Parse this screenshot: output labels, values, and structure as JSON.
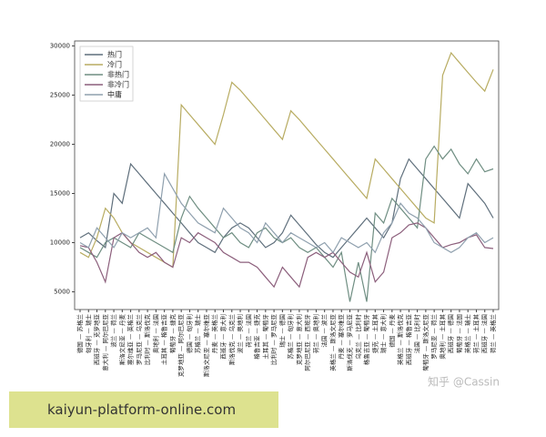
{
  "chart_data": {
    "type": "line",
    "categories": [
      "德国 — 苏格兰",
      "匈牙利 — 瑞士",
      "西班牙 — 克罗地亚",
      "意大利 — 阿尔巴尼亚",
      "波兰 — 荷兰",
      "斯洛文尼亚 — 丹麦",
      "塞尔维亚 — 英格兰",
      "罗马尼亚 — 乌克兰",
      "比利时 — 斯洛伐克",
      "奥地利 — 法国",
      "土耳其 — 格鲁吉亚",
      "葡萄牙 — 捷克",
      "克罗地亚 — 阿尔巴尼亚",
      "德国 — 匈牙利",
      "苏格兰 — 瑞士",
      "斯洛文尼亚 — 塞尔维亚",
      "丹麦 — 英格兰",
      "西班牙 — 意大利",
      "斯洛伐克 — 乌克兰",
      "波兰 — 奥地利",
      "荷兰 — 法国",
      "格鲁吉亚 — 捷克",
      "土耳其 — 葡萄牙",
      "比利时 — 罗马尼亚",
      "瑞士 — 德国",
      "苏格兰 — 匈牙利",
      "克罗地亚 — 意大利",
      "阿尔巴尼亚 — 西班牙",
      "荷兰 — 奥地利",
      "法国 — 波兰",
      "英格兰 — 斯洛文尼亚",
      "丹麦 — 塞尔维亚",
      "斯洛伐克 — 罗马尼亚",
      "乌克兰 — 比利时",
      "格鲁吉亚 — 葡萄牙",
      "捷克 — 土耳其",
      "瑞士 — 意大利",
      "德国 — 丹麦",
      "英格兰 — 斯洛伐克",
      "西班牙 — 格鲁吉亚",
      "法国 — 比利时",
      "葡萄牙 — 斯洛文尼亚",
      "罗马尼亚 — 荷兰",
      "奥地利 — 土耳其",
      "西班牙 — 德国",
      "葡萄牙 — 法国",
      "英格兰 — 瑞士",
      "荷兰 — 土耳其",
      "西班牙 — 法国",
      "荷兰 — 英格兰"
    ],
    "series": [
      {
        "name": "热门",
        "color": "#5f6f7c",
        "values": [
          10500,
          11000,
          10200,
          9500,
          15000,
          14000,
          18000,
          17000,
          16000,
          15000,
          14000,
          13000,
          12000,
          11000,
          10000,
          9500,
          9000,
          10500,
          11500,
          12000,
          11500,
          10500,
          9500,
          10000,
          11000,
          12800,
          11800,
          10800,
          9800,
          9000,
          8500,
          9500,
          10500,
          11500,
          12500,
          11500,
          10500,
          12000,
          16500,
          18500,
          17500,
          16500,
          15500,
          14500,
          13500,
          12500,
          16000,
          15000,
          14000,
          12500
        ]
      },
      {
        "name": "冷门",
        "color": "#b8ac62",
        "values": [
          9000,
          8500,
          10500,
          13500,
          12500,
          11000,
          10000,
          9500,
          9000,
          8500,
          8000,
          7500,
          24000,
          23000,
          22000,
          21000,
          20000,
          23000,
          26300,
          25500,
          24500,
          23500,
          22500,
          21500,
          20500,
          23400,
          22500,
          21500,
          20500,
          19500,
          18500,
          17500,
          16500,
          15500,
          14500,
          18500,
          17500,
          16500,
          15500,
          14500,
          13500,
          12500,
          12000,
          27000,
          29300,
          28300,
          27300,
          26300,
          25400,
          27600
        ]
      },
      {
        "name": "非热门",
        "color": "#6f8e82",
        "values": [
          9500,
          9000,
          8500,
          10000,
          10500,
          10000,
          9500,
          11000,
          10500,
          10000,
          9500,
          9000,
          12500,
          14700,
          13500,
          12500,
          11500,
          10500,
          11000,
          10000,
          9500,
          11000,
          11500,
          10500,
          10000,
          10500,
          9500,
          9000,
          9500,
          8500,
          7500,
          9000,
          4000,
          8000,
          4000,
          13000,
          12000,
          14500,
          13500,
          12500,
          11500,
          18500,
          19800,
          18500,
          19500,
          18000,
          17000,
          18500,
          17200,
          17500
        ]
      },
      {
        "name": "非冷门",
        "color": "#8c5f7c",
        "values": [
          9700,
          9500,
          8000,
          6000,
          10500,
          11000,
          10000,
          9000,
          8500,
          9000,
          8000,
          7500,
          10500,
          10000,
          11000,
          10500,
          10000,
          9000,
          8500,
          8000,
          8000,
          7500,
          6500,
          5500,
          7500,
          6500,
          5500,
          8500,
          9000,
          8500,
          9000,
          8000,
          7000,
          6500,
          9000,
          6000,
          7000,
          10500,
          11000,
          11800,
          12000,
          11500,
          10500,
          9500,
          9800,
          10000,
          10500,
          10800,
          9500,
          9400
        ]
      },
      {
        "name": "中庸",
        "color": "#8fa0ae",
        "values": [
          10000,
          9500,
          11500,
          10500,
          9500,
          11000,
          10500,
          11000,
          11500,
          10500,
          17000,
          15500,
          14000,
          13000,
          12000,
          11500,
          11000,
          13500,
          12500,
          11500,
          11000,
          10000,
          12000,
          11000,
          10000,
          11000,
          10500,
          10000,
          9500,
          10000,
          9000,
          10500,
          10000,
          9500,
          10000,
          9000,
          11000,
          12000,
          14000,
          13000,
          12500,
          11500,
          10000,
          9500,
          9000,
          9500,
          10500,
          11000,
          10000,
          10500
        ]
      }
    ],
    "ylim": [
      3200,
      30500
    ],
    "yticks": [
      5000,
      10000,
      15000,
      20000,
      25000,
      30000
    ],
    "legend": "upper left",
    "watermark": "知乎 @Cassin"
  },
  "banner": {
    "text": "kaiyun-platform-online.com"
  }
}
